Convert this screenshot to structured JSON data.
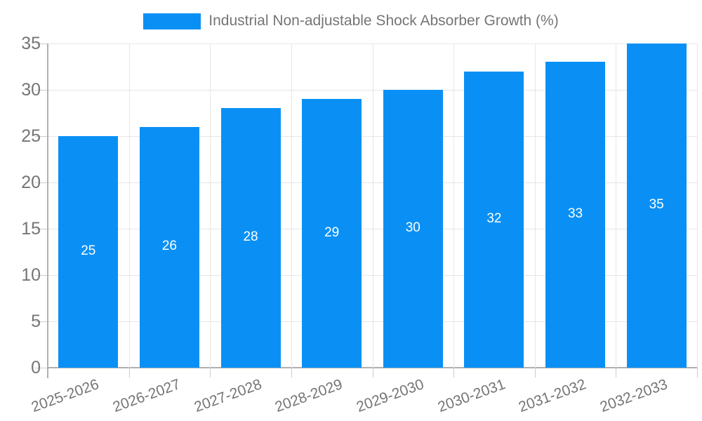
{
  "chart_data": {
    "type": "bar",
    "title": "Industrial Non-adjustable Shock Absorber Growth (%)",
    "legend_position": "top",
    "categories": [
      "2025-2026",
      "2026-2027",
      "2027-2028",
      "2028-2029",
      "2029-2030",
      "2030-2031",
      "2031-2032",
      "2032-2033"
    ],
    "values": [
      25,
      26,
      28,
      29,
      30,
      32,
      33,
      35
    ],
    "xlabel": "",
    "ylabel": "",
    "ylim": [
      0,
      35
    ],
    "ytick_step": 5,
    "yticks": [
      0,
      5,
      10,
      15,
      20,
      25,
      30,
      35
    ],
    "grid": true,
    "value_labels_shown": true,
    "colors": {
      "bar": "#0a90f5",
      "grid": "#e6e6e6",
      "axis": "#b0b0b0",
      "tick": "#cccccc",
      "label": "#757575",
      "value_label": "#ffffff",
      "background": "#ffffff"
    }
  }
}
